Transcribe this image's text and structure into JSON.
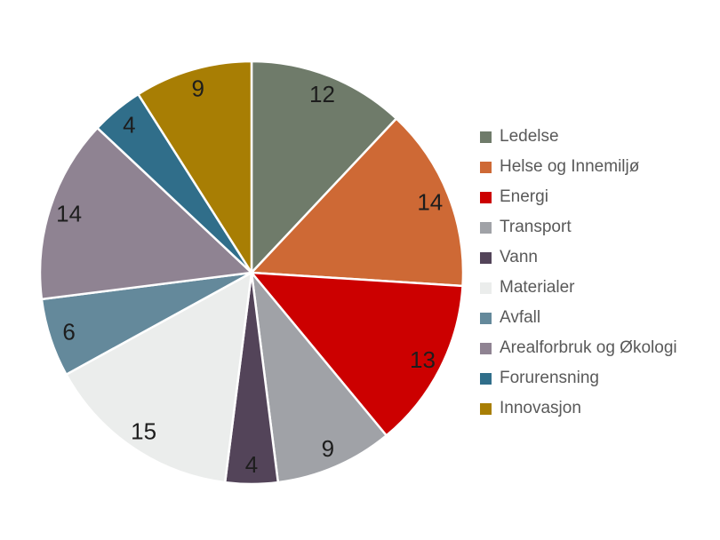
{
  "chart_data": {
    "type": "pie",
    "categories": [
      "Ledelse",
      "Helse og Innemiljø",
      "Energi",
      "Transport",
      "Vann",
      "Materialer",
      "Avfall",
      "Arealforbruk og Økologi",
      "Forurensning",
      "Innovasjon"
    ],
    "values": [
      12,
      14,
      13,
      9,
      4,
      15,
      6,
      14,
      4,
      9
    ],
    "colors": [
      "#6f7b6a",
      "#ce6935",
      "#cc0000",
      "#a0a2a7",
      "#534459",
      "#ebedec",
      "#64899b",
      "#8f8392",
      "#306e8a",
      "#a87e04"
    ],
    "total": 100,
    "title": "",
    "start_angle_deg": 0,
    "direction": "clockwise",
    "legend_position": "right",
    "slice_border_color": "#ffffff",
    "value_label_color": "#1d1d1d",
    "legend_text_color": "#595959",
    "background_color": "#ffffff"
  }
}
